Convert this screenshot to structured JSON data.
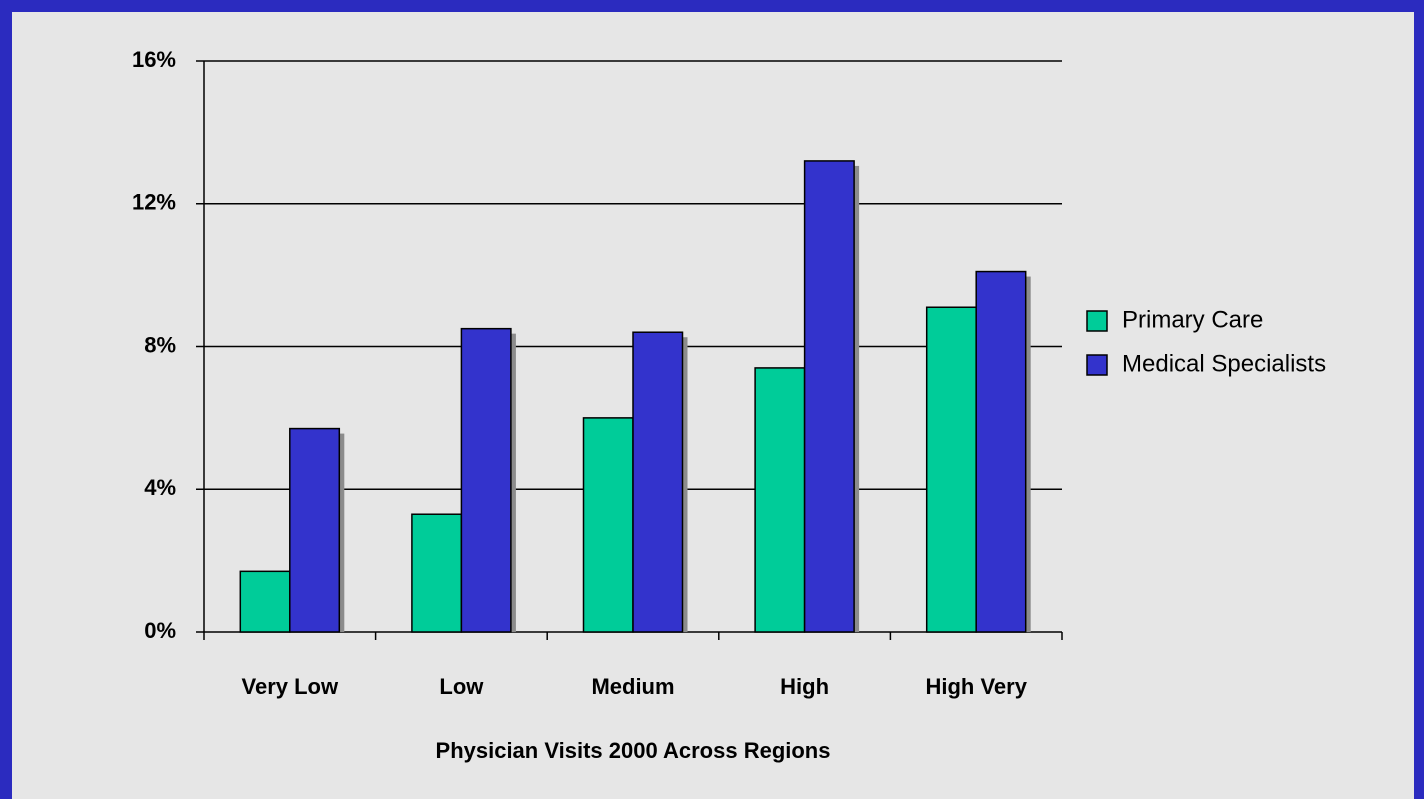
{
  "chart_data": {
    "type": "bar",
    "x_label": "Physician Visits 2000 Across Regions",
    "categories": [
      "Very Low",
      "Low",
      "Medium",
      "High",
      "High Very"
    ],
    "series": [
      {
        "name": "Primary Care",
        "color": "#00cc99",
        "values": [
          1.7,
          3.3,
          6.0,
          7.4,
          9.1
        ]
      },
      {
        "name": "Medical Specialists",
        "color": "#3333cc",
        "values": [
          5.7,
          8.5,
          8.4,
          13.2,
          10.1
        ]
      }
    ],
    "ylim": [
      0,
      16
    ],
    "yticks": [
      {
        "value": 0,
        "label": "0%"
      },
      {
        "value": 4,
        "label": "4%"
      },
      {
        "value": 8,
        "label": "8%"
      },
      {
        "value": 12,
        "label": "12%"
      },
      {
        "value": 16,
        "label": "16%"
      }
    ],
    "grid": true,
    "legend": "right"
  }
}
